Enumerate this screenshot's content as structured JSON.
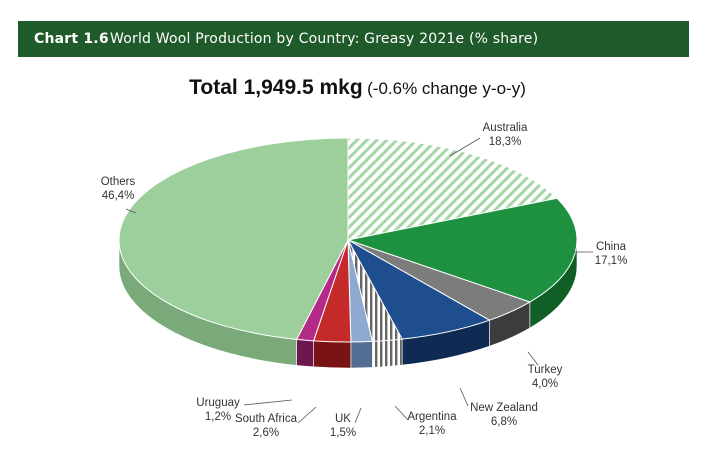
{
  "header": {
    "chart_number": "Chart 1.6",
    "chart_title": "World Wool Production by Country: Greasy 2021e (% share)"
  },
  "headline": {
    "total": "Total 1,949.5 mkg",
    "change": "(-0.6% change y-o-y)"
  },
  "chart_data": {
    "type": "pie",
    "title": "World Wool Production by Country: Greasy 2021e (% share)",
    "subtitle": "Total 1,949.5 mkg (-0.6% change y-o-y)",
    "unit": "%",
    "slices": [
      {
        "name": "Australia",
        "value": 18.3,
        "label": "18,3%",
        "color": "#a5d6a7",
        "pattern": "hatch",
        "side": "#7fb07f"
      },
      {
        "name": "China",
        "value": 17.1,
        "label": "17,1%",
        "color": "#1e9140",
        "side": "#105f27"
      },
      {
        "name": "Turkey",
        "value": 4.0,
        "label": "4,0%",
        "color": "#7c7c7c",
        "side": "#3c3c3c"
      },
      {
        "name": "New Zealand",
        "value": 6.8,
        "label": "6,8%",
        "color": "#1f4e8f",
        "side": "#0f2b53"
      },
      {
        "name": "Argentina",
        "value": 2.1,
        "label": "2,1%",
        "color": "#8a8a8a",
        "pattern": "stripes",
        "side": "#555555"
      },
      {
        "name": "UK",
        "value": 1.5,
        "label": "1,5%",
        "color": "#8eaad0",
        "side": "#536e92"
      },
      {
        "name": "South Africa",
        "value": 2.6,
        "label": "2,6%",
        "color": "#c42a2a",
        "side": "#7a1414"
      },
      {
        "name": "Uruguay",
        "value": 1.2,
        "label": "1,2%",
        "color": "#b32b86",
        "side": "#6e1650"
      },
      {
        "name": "Others",
        "value": 46.4,
        "label": "46,4%",
        "color": "#9ccf9c",
        "side": "#7aaa7a"
      }
    ]
  }
}
